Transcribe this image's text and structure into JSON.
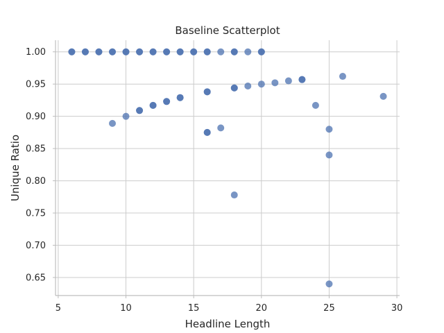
{
  "chart_data": {
    "type": "scatter",
    "title": "Baseline Scatterplot",
    "xlabel": "Headline Length",
    "ylabel": "Unique Ratio",
    "xlim": [
      4.8,
      30.2
    ],
    "ylim": [
      0.622,
      1.018
    ],
    "xticks": [
      5,
      10,
      15,
      20,
      25,
      30
    ],
    "yticks": [
      0.65,
      0.7,
      0.75,
      0.8,
      0.85,
      0.9,
      0.95,
      1.0
    ],
    "xtick_labels": [
      "5",
      "10",
      "15",
      "20",
      "25",
      "30"
    ],
    "ytick_labels": [
      "0.65",
      "0.70",
      "0.75",
      "0.80",
      "0.85",
      "0.90",
      "0.95",
      "1.00"
    ],
    "grid": true,
    "color": "#4c72b0",
    "points": [
      {
        "x": 6,
        "y": 1.0
      },
      {
        "x": 6,
        "y": 1.0
      },
      {
        "x": 7,
        "y": 1.0
      },
      {
        "x": 7,
        "y": 1.0
      },
      {
        "x": 8,
        "y": 1.0
      },
      {
        "x": 8,
        "y": 1.0
      },
      {
        "x": 9,
        "y": 1.0
      },
      {
        "x": 9,
        "y": 1.0
      },
      {
        "x": 10,
        "y": 1.0
      },
      {
        "x": 10,
        "y": 1.0
      },
      {
        "x": 11,
        "y": 1.0
      },
      {
        "x": 11,
        "y": 1.0
      },
      {
        "x": 12,
        "y": 1.0
      },
      {
        "x": 12,
        "y": 1.0
      },
      {
        "x": 13,
        "y": 1.0
      },
      {
        "x": 13,
        "y": 1.0
      },
      {
        "x": 14,
        "y": 1.0
      },
      {
        "x": 14,
        "y": 1.0
      },
      {
        "x": 15,
        "y": 1.0
      },
      {
        "x": 15,
        "y": 1.0
      },
      {
        "x": 16,
        "y": 1.0
      },
      {
        "x": 16,
        "y": 1.0
      },
      {
        "x": 17,
        "y": 1.0
      },
      {
        "x": 18,
        "y": 1.0
      },
      {
        "x": 18,
        "y": 1.0
      },
      {
        "x": 19,
        "y": 1.0
      },
      {
        "x": 20,
        "y": 1.0
      },
      {
        "x": 20,
        "y": 1.0
      },
      {
        "x": 9,
        "y": 0.889
      },
      {
        "x": 10,
        "y": 0.9
      },
      {
        "x": 11,
        "y": 0.909
      },
      {
        "x": 11,
        "y": 0.909
      },
      {
        "x": 12,
        "y": 0.917
      },
      {
        "x": 12,
        "y": 0.917
      },
      {
        "x": 13,
        "y": 0.923
      },
      {
        "x": 13,
        "y": 0.923
      },
      {
        "x": 14,
        "y": 0.929
      },
      {
        "x": 14,
        "y": 0.929
      },
      {
        "x": 16,
        "y": 0.938
      },
      {
        "x": 16,
        "y": 0.938
      },
      {
        "x": 16,
        "y": 0.875
      },
      {
        "x": 16,
        "y": 0.875
      },
      {
        "x": 17,
        "y": 0.882
      },
      {
        "x": 18,
        "y": 0.944
      },
      {
        "x": 18,
        "y": 0.944
      },
      {
        "x": 18,
        "y": 0.778
      },
      {
        "x": 19,
        "y": 0.947
      },
      {
        "x": 20,
        "y": 0.95
      },
      {
        "x": 21,
        "y": 0.952
      },
      {
        "x": 22,
        "y": 0.955
      },
      {
        "x": 23,
        "y": 0.957
      },
      {
        "x": 23,
        "y": 0.957
      },
      {
        "x": 24,
        "y": 0.917
      },
      {
        "x": 25,
        "y": 0.88
      },
      {
        "x": 25,
        "y": 0.84
      },
      {
        "x": 25,
        "y": 0.64
      },
      {
        "x": 26,
        "y": 0.962
      },
      {
        "x": 29,
        "y": 0.931
      }
    ]
  }
}
